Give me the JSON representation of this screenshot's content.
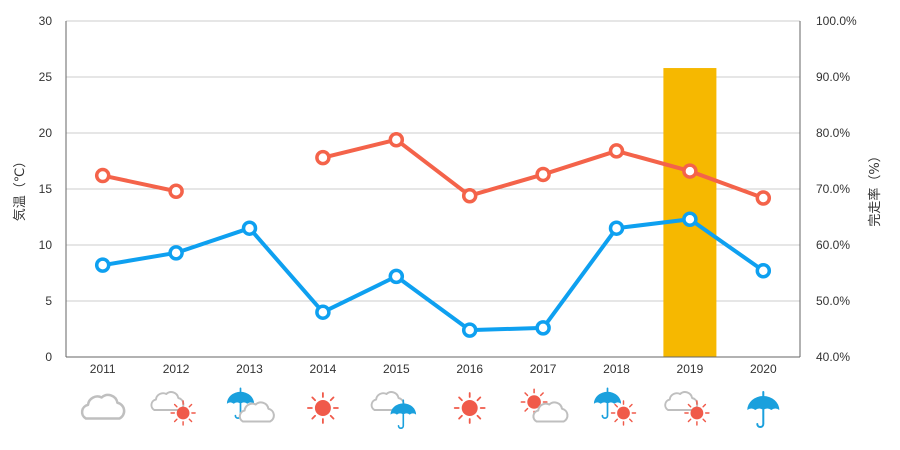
{
  "chart_data": {
    "type": "line",
    "categories": [
      "2011",
      "2012",
      "2013",
      "2014",
      "2015",
      "2016",
      "2017",
      "2018",
      "2019",
      "2020"
    ],
    "ylabel_left": "気温（℃）",
    "ylabel_right": "完走率（%）",
    "ylim_left": [
      0,
      30
    ],
    "yticks_left": [
      "0",
      "5",
      "10",
      "15",
      "20",
      "25",
      "30"
    ],
    "ylim_right": [
      40,
      100
    ],
    "yticks_right": [
      "40.0%",
      "50.0%",
      "60.0%",
      "70.0%",
      "80.0%",
      "90.0%",
      "100.0%"
    ],
    "grid": true,
    "series": [
      {
        "color": "#f4634a",
        "axis": "left",
        "values": [
          16.2,
          14.8,
          null,
          17.8,
          19.4,
          14.4,
          16.3,
          18.4,
          16.6,
          14.2
        ]
      },
      {
        "color": "#0ea0f0",
        "axis": "left",
        "values": [
          8.2,
          9.3,
          11.5,
          4.0,
          7.2,
          2.4,
          2.6,
          11.5,
          12.3,
          7.7
        ]
      }
    ],
    "highlight": {
      "category": "2019",
      "value": 25.8,
      "axis": "left",
      "color": "#f6b800"
    },
    "weather": [
      [
        "cloud-icon"
      ],
      [
        "cloud-icon",
        "sun-icon"
      ],
      [
        "umbrella-icon",
        "cloud-icon"
      ],
      [
        "sun-icon"
      ],
      [
        "cloud-icon",
        "umbrella-icon"
      ],
      [
        "sun-icon"
      ],
      [
        "sun-icon",
        "cloud-icon"
      ],
      [
        "umbrella-icon",
        "sun-icon"
      ],
      [
        "cloud-icon",
        "sun-icon"
      ],
      [
        "umbrella-icon"
      ]
    ],
    "colors": {
      "grid": "#cccccc",
      "axis": "#666666",
      "sun": "#f05a4a",
      "cloud": "#bfbfbf",
      "umbrella": "#1aa0dd"
    }
  }
}
